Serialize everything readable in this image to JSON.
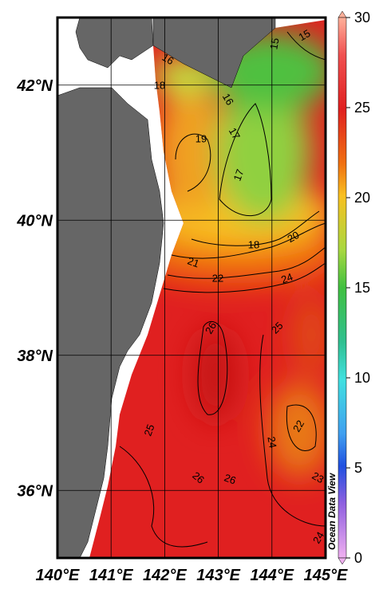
{
  "map": {
    "xlim": [
      140,
      145
    ],
    "ylim": [
      35,
      43
    ],
    "xticks": [
      {
        "value": 140,
        "label": "140°E"
      },
      {
        "value": 141,
        "label": "141°E"
      },
      {
        "value": 142,
        "label": "142°E"
      },
      {
        "value": 143,
        "label": "143°E"
      },
      {
        "value": 144,
        "label": "144°E"
      },
      {
        "value": 145,
        "label": "145°E"
      }
    ],
    "yticks": [
      {
        "value": 36,
        "label": "36°N"
      },
      {
        "value": 38,
        "label": "38°N"
      },
      {
        "value": 40,
        "label": "40°N"
      },
      {
        "value": 42,
        "label": "42°N"
      }
    ],
    "colorbar": {
      "lim": [
        0,
        30
      ],
      "ticks": [
        0,
        5,
        10,
        15,
        20,
        25,
        30
      ]
    },
    "contour_labels": [
      15,
      15,
      16,
      18,
      16,
      17,
      19,
      17,
      18,
      20,
      21,
      22,
      24,
      25,
      26,
      22,
      24,
      25,
      26,
      26,
      23,
      24
    ],
    "credit": "Ocean Data View"
  }
}
